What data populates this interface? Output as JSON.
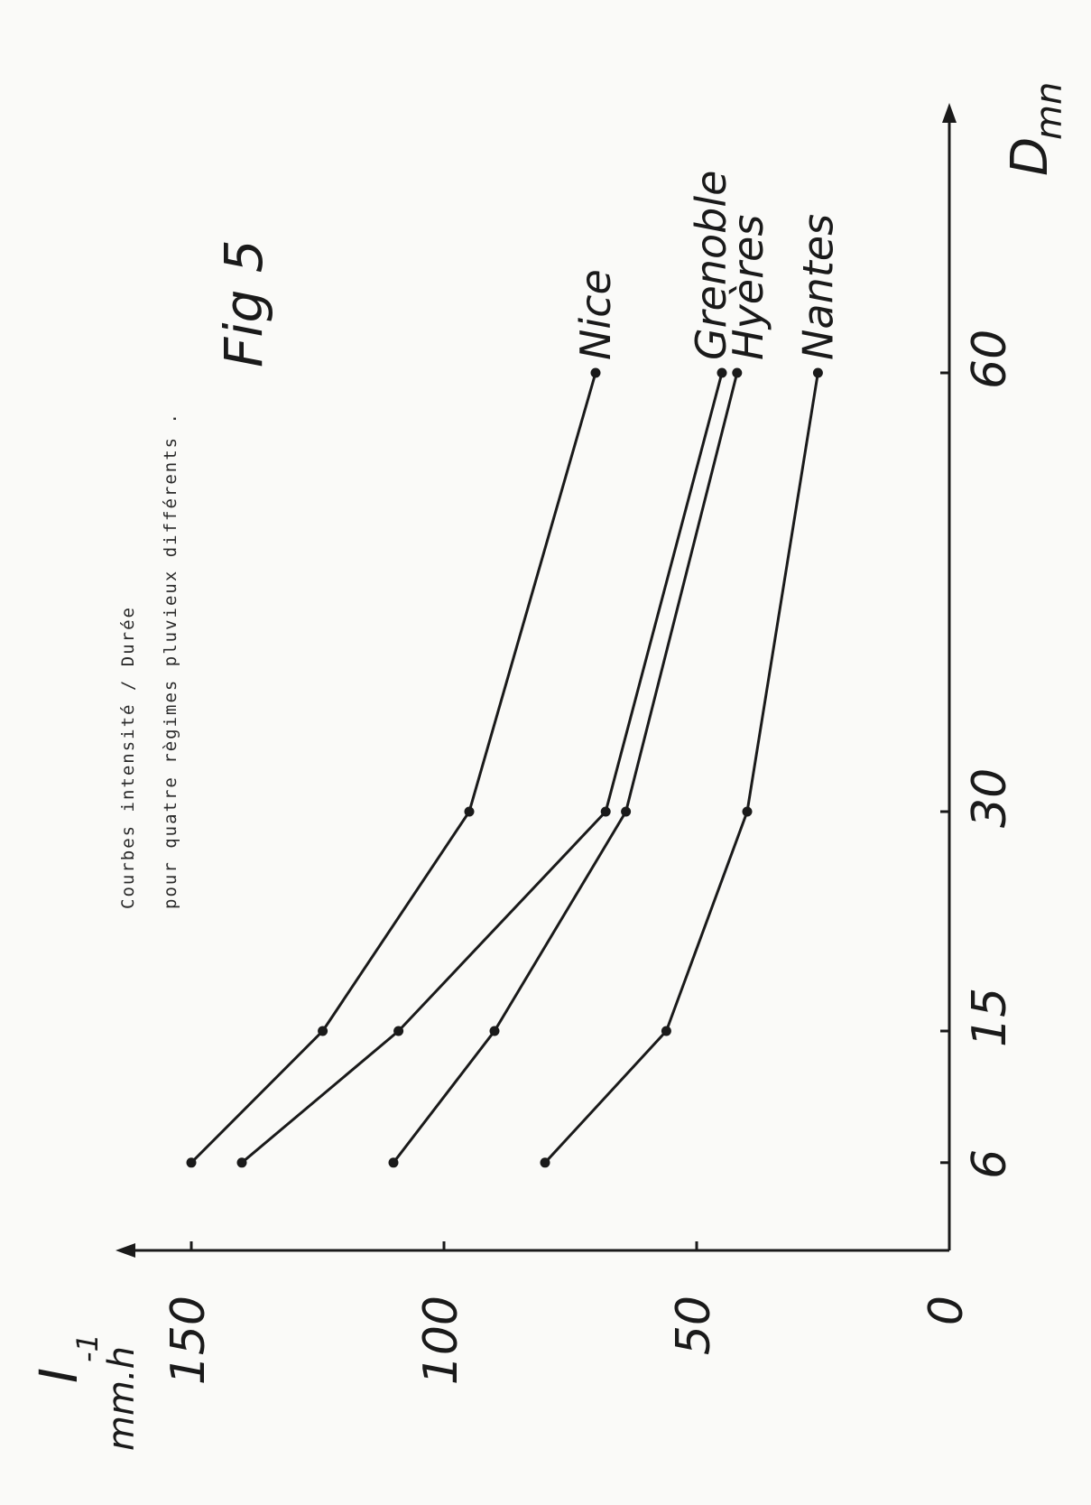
{
  "chart_data": {
    "type": "line",
    "title": "Fig 5",
    "subtitle_lines": [
      "Courbes intensité / Durée",
      "pour quatre règimes pluvieux différents ."
    ],
    "xlabel": "D",
    "xlabel_sub": "mn",
    "ylabel": "I",
    "ylabel_sub": "mm.h",
    "ylabel_sup": "-1",
    "x": [
      6,
      15,
      30,
      60
    ],
    "x_ticks": [
      "6",
      "15",
      "30",
      "60"
    ],
    "y_ticks": [
      "0",
      "50",
      "100",
      "150"
    ],
    "xlim": [
      0,
      75
    ],
    "ylim": [
      0,
      160
    ],
    "series": [
      {
        "name": "Nice",
        "values": [
          150,
          124,
          95,
          70
        ]
      },
      {
        "name": "Grenoble",
        "values": [
          140,
          109,
          68,
          45
        ]
      },
      {
        "name": "Hyères",
        "values": [
          110,
          90,
          64,
          42
        ]
      },
      {
        "name": "Nantes",
        "values": [
          80,
          56,
          40,
          26
        ]
      }
    ]
  }
}
